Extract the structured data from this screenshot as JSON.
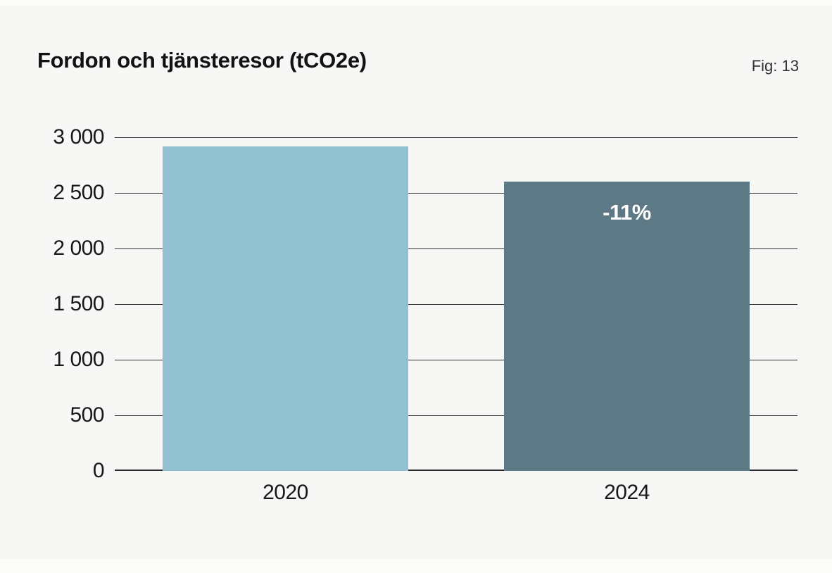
{
  "chart_data": {
    "type": "bar",
    "title": "Fordon och tjänsteresor (tCO2e)",
    "fig_label": "Fig: 13",
    "categories": [
      "2020",
      "2024"
    ],
    "values": [
      2920,
      2600
    ],
    "annotations": [
      null,
      "-11%"
    ],
    "bar_colors": [
      "#92c2d2",
      "#5d7985"
    ],
    "unit": "tCO2e",
    "xlabel": "",
    "ylabel": "",
    "ylim": [
      0,
      3000
    ],
    "ytick_step": 500,
    "ytick_values": [
      3000,
      2500,
      2000,
      1500,
      1000,
      500,
      0
    ],
    "ytick_labels": [
      "3 000",
      "2 500",
      "2 000",
      "1 500",
      "1 000",
      "500",
      "0"
    ],
    "grid": true,
    "legend": false
  },
  "colors": {
    "page_bg": "#fcfcfb",
    "card_bg": "#f7f7f6",
    "title_text": "#121212",
    "fig_text": "#2e3138",
    "tick_text": "#16181a",
    "gridline": "#2f2f2f",
    "axis_line": "#28292b",
    "annotation_text": "#ffffff"
  }
}
